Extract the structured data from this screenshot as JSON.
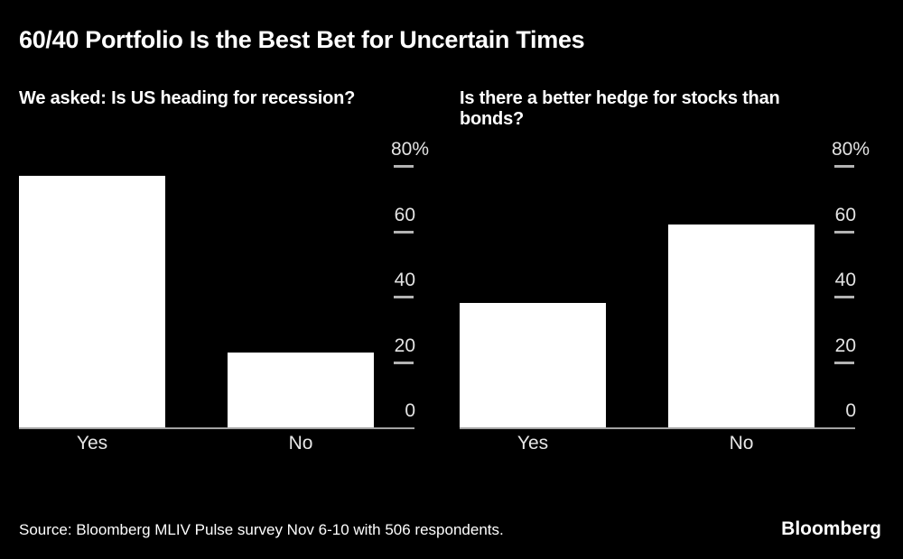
{
  "title": "60/40 Portfolio Is the Best Bet for Uncertain Times",
  "chart_data": [
    {
      "type": "bar",
      "question": "We asked: Is US heading for recession?",
      "categories": [
        "Yes",
        "No"
      ],
      "values": [
        77,
        23
      ],
      "unit": "%",
      "ylim": [
        0,
        80
      ],
      "yticks": [
        {
          "value": 0,
          "label": "0"
        },
        {
          "value": 20,
          "label": "20"
        },
        {
          "value": 40,
          "label": "40"
        },
        {
          "value": 60,
          "label": "60"
        },
        {
          "value": 80,
          "label": "80%"
        }
      ],
      "axis_side": "right",
      "grid": false,
      "bar_color": "#ffffff"
    },
    {
      "type": "bar",
      "question": "Is there a better hedge for stocks than bonds?",
      "categories": [
        "Yes",
        "No"
      ],
      "values": [
        38,
        62
      ],
      "unit": "%",
      "ylim": [
        0,
        80
      ],
      "yticks": [
        {
          "value": 0,
          "label": "0"
        },
        {
          "value": 20,
          "label": "20"
        },
        {
          "value": 40,
          "label": "40"
        },
        {
          "value": 60,
          "label": "60"
        },
        {
          "value": 80,
          "label": "80%"
        }
      ],
      "axis_side": "right",
      "grid": false,
      "bar_color": "#ffffff"
    }
  ],
  "footer": {
    "source": "Source: Bloomberg MLIV Pulse survey Nov 6-10 with 506 respondents.",
    "logo": "Bloomberg"
  },
  "colors": {
    "background": "#000000",
    "bar": "#ffffff",
    "axis_line": "#a3a3a3",
    "tick": "#b3b3b3",
    "tick_label": "#e3e3e3",
    "text": "#ffffff"
  }
}
